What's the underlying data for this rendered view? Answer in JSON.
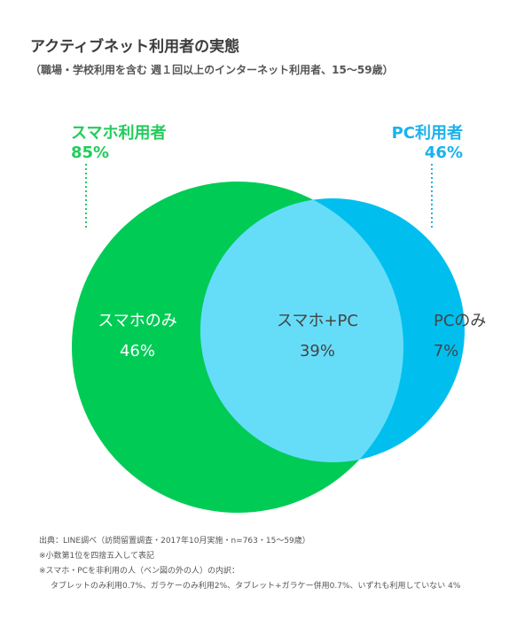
{
  "header": {
    "title": "アクティブネット利用者の実態",
    "subtitle": "（職場・学校利用を含む 週１回以上のインターネット利用者、15〜59歳）"
  },
  "chart_data": {
    "type": "venn",
    "sets": [
      {
        "key": "smartphone",
        "name": "スマホ利用者",
        "value": "85%",
        "color": "#00cc55"
      },
      {
        "key": "pc",
        "name": "PC利用者",
        "value": "46%",
        "color": "#00bfee"
      }
    ],
    "regions": [
      {
        "key": "smartphone_only",
        "label": "スマホのみ",
        "value": "46%"
      },
      {
        "key": "both",
        "label": "スマホ+PC",
        "value": "39%",
        "color": "#66ddf8"
      },
      {
        "key": "pc_only",
        "label": "PCのみ",
        "value": "7%"
      }
    ],
    "values_percent": {
      "smartphone_only": 46,
      "both": 39,
      "pc_only": 7,
      "smartphone_total": 85,
      "pc_total": 46
    }
  },
  "notes": {
    "source": "出典：LINE調べ（訪問留置調査・2017年10月実施・n=763・15〜59歳）",
    "note1": "※小数第1位を四捨五入して表記",
    "note2": "※スマホ・PCを非利用の人（ベン図の外の人）の内訳：",
    "note3": "タブレットのみ利用0.7%、ガラケーのみ利用2%、タブレット+ガラケー併用0.7%、いずれも利用していない 4%"
  }
}
